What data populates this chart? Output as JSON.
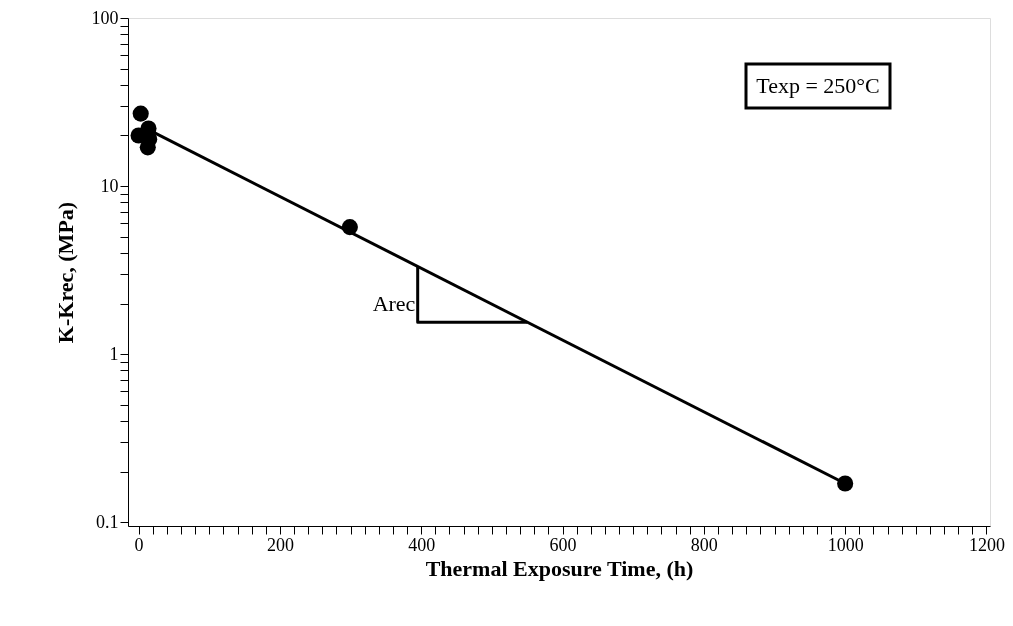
{
  "chart_data": {
    "type": "scatter",
    "xlabel": "Thermal Exposure Time, (h)",
    "ylabel": "K-Krec, (MPa)",
    "series": [
      {
        "color": "#000000",
        "marker": "circle",
        "x": [
          0,
          3,
          14,
          15,
          13,
          299,
          1000
        ],
        "values": [
          20,
          27,
          22,
          19,
          17,
          5.7,
          0.17
        ]
      },
      {
        "type": "line",
        "marker": "none",
        "color": "#000000",
        "x": [
          20,
          1000
        ],
        "values": [
          21,
          0.17
        ]
      },
      {
        "type": "line",
        "marker": "none",
        "color": "#000000",
        "x": [
          395,
          395,
          550
        ],
        "values": [
          3.3,
          1.55,
          1.55
        ]
      }
    ],
    "annotations": [
      "Texp = 250°C",
      "Arec"
    ],
    "log": "y",
    "grid": false,
    "line_style": "solid",
    "xlim": [
      -15,
      1205
    ],
    "xticks": [
      0,
      {
        "value": 20,
        "label": null
      },
      {
        "value": 40,
        "label": null
      },
      {
        "value": 60,
        "label": null
      },
      {
        "value": 80,
        "label": null
      },
      {
        "value": 100,
        "label": null
      },
      {
        "value": 120,
        "label": null
      },
      {
        "value": 140,
        "label": null
      },
      {
        "value": 160,
        "label": null
      },
      {
        "value": 180,
        "label": null
      },
      200,
      {
        "value": 220,
        "label": null
      },
      {
        "value": 240,
        "label": null
      },
      {
        "value": 260,
        "label": null
      },
      {
        "value": 280,
        "label": null
      },
      {
        "value": 300,
        "label": null
      },
      {
        "value": 320,
        "label": null
      },
      {
        "value": 340,
        "label": null
      },
      {
        "value": 360,
        "label": null
      },
      {
        "value": 380,
        "label": null
      },
      400,
      {
        "value": 420,
        "label": null
      },
      {
        "value": 440,
        "label": null
      },
      {
        "value": 460,
        "label": null
      },
      {
        "value": 480,
        "label": null
      },
      {
        "value": 500,
        "label": null
      },
      {
        "value": 520,
        "label": null
      },
      {
        "value": 540,
        "label": null
      },
      {
        "value": 560,
        "label": null
      },
      {
        "value": 580,
        "label": null
      },
      600,
      {
        "value": 620,
        "label": null
      },
      {
        "value": 640,
        "label": null
      },
      {
        "value": 660,
        "label": null
      },
      {
        "value": 680,
        "label": null
      },
      {
        "value": 700,
        "label": null
      },
      {
        "value": 720,
        "label": null
      },
      {
        "value": 740,
        "label": null
      },
      {
        "value": 760,
        "label": null
      },
      {
        "value": 780,
        "label": null
      },
      800,
      {
        "value": 820,
        "label": null
      },
      {
        "value": 840,
        "label": null
      },
      {
        "value": 860,
        "label": null
      },
      {
        "value": 880,
        "label": null
      },
      {
        "value": 900,
        "label": null
      },
      {
        "value": 920,
        "label": null
      },
      {
        "value": 940,
        "label": null
      },
      {
        "value": 960,
        "label": null
      },
      {
        "value": 980,
        "label": null
      },
      1000,
      {
        "value": 1020,
        "label": null
      },
      {
        "value": 1040,
        "label": null
      },
      {
        "value": 1060,
        "label": null
      },
      {
        "value": 1080,
        "label": null
      },
      {
        "value": 1100,
        "label": null
      },
      {
        "value": 1120,
        "label": null
      },
      {
        "value": 1140,
        "label": null
      },
      {
        "value": 1160,
        "label": null
      },
      {
        "value": 1180,
        "label": null
      },
      1200
    ],
    "ylim": [
      0.095,
      100
    ],
    "yticks": [
      0.1,
      {
        "value": 0.2,
        "label": null
      },
      {
        "value": 0.3,
        "label": null
      },
      {
        "value": 0.4,
        "label": null
      },
      {
        "value": 0.5,
        "label": null
      },
      {
        "value": 0.6,
        "label": null
      },
      {
        "value": 0.7,
        "label": null
      },
      {
        "value": 0.8,
        "label": null
      },
      {
        "value": 0.9,
        "label": null
      },
      1,
      {
        "value": 2,
        "label": null
      },
      {
        "value": 3,
        "label": null
      },
      {
        "value": 4,
        "label": null
      },
      {
        "value": 5,
        "label": null
      },
      {
        "value": 6,
        "label": null
      },
      {
        "value": 7,
        "label": null
      },
      {
        "value": 8,
        "label": null
      },
      {
        "value": 9,
        "label": null
      },
      10,
      {
        "value": 20,
        "label": null
      },
      {
        "value": 30,
        "label": null
      },
      {
        "value": 40,
        "label": null
      },
      {
        "value": 50,
        "label": null
      },
      {
        "value": 60,
        "label": null
      },
      {
        "value": 70,
        "label": null
      },
      {
        "value": 80,
        "label": null
      },
      {
        "value": 90,
        "label": null
      },
      100
    ]
  }
}
